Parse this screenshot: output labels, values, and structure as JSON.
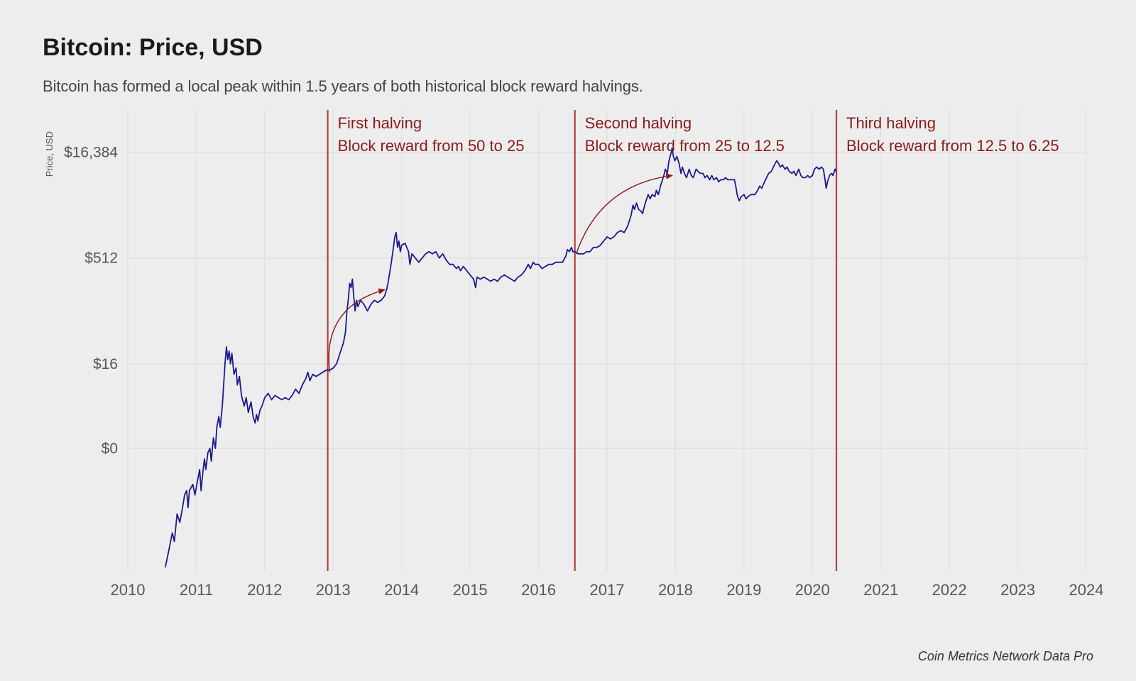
{
  "title": "Bitcoin: Price, USD",
  "subtitle": "Bitcoin has formed a local peak within 1.5 years of both historical block reward halvings.",
  "attribution": "Coin Metrics Network Data Pro",
  "chart": {
    "type": "line",
    "background_color": "#ededed",
    "grid_color": "#dcdcdc",
    "grid_stroke_width": 1,
    "line_color": "#1a1a8f",
    "line_stroke_width": 1.8,
    "halving_line_color": "#b04040",
    "halving_line_width": 2.2,
    "annotation_text_color": "#8b1a1a",
    "annotation_fontsize": 22,
    "arrow_color": "#8b1a1a",
    "arrow_stroke_width": 1.4,
    "ylabel": "Price, USD",
    "ylabel_fontsize": 13,
    "ylabel_color": "#555",
    "tick_label_color": "#555",
    "tick_fontsize_x": 22,
    "tick_fontsize_y": 21,
    "x_axis": {
      "min": 2010,
      "max": 2024,
      "ticks": [
        2010,
        2011,
        2012,
        2013,
        2014,
        2015,
        2016,
        2017,
        2018,
        2019,
        2020,
        2021,
        2022,
        2023,
        2024
      ]
    },
    "y_axis": {
      "scale": "log-like",
      "ticks": [
        {
          "label": "$0",
          "log_value": 0
        },
        {
          "label": "$16",
          "log_value": 4
        },
        {
          "label": "$512",
          "log_value": 9
        },
        {
          "label": "$16,384",
          "log_value": 14
        }
      ],
      "log_min": -5.8,
      "log_max": 16
    },
    "halvings": [
      {
        "x": 2012.92,
        "title": "First halving",
        "desc": "Block reward from 50 to 25"
      },
      {
        "x": 2016.53,
        "title": "Second halving",
        "desc": "Block reward from 25 to 12.5"
      },
      {
        "x": 2020.35,
        "title": "Third halving",
        "desc": "Block reward from 12.5 to 6.25"
      }
    ],
    "arrows": [
      {
        "start_x": 2012.95,
        "start_y_log": 3.6,
        "end_x": 2013.75,
        "end_y_log": 7.5,
        "curve": 0.5
      },
      {
        "start_x": 2016.55,
        "start_y_log": 9.2,
        "end_x": 2017.95,
        "end_y_log": 12.9,
        "curve": 0.45
      }
    ],
    "series": [
      [
        2010.55,
        -5.6
      ],
      [
        2010.6,
        -4.8
      ],
      [
        2010.65,
        -4.0
      ],
      [
        2010.68,
        -4.4
      ],
      [
        2010.72,
        -3.1
      ],
      [
        2010.76,
        -3.5
      ],
      [
        2010.8,
        -2.8
      ],
      [
        2010.83,
        -2.2
      ],
      [
        2010.86,
        -2.0
      ],
      [
        2010.88,
        -2.8
      ],
      [
        2010.9,
        -2.0
      ],
      [
        2010.95,
        -1.7
      ],
      [
        2010.98,
        -2.2
      ],
      [
        2011.02,
        -1.5
      ],
      [
        2011.05,
        -1.0
      ],
      [
        2011.07,
        -2.0
      ],
      [
        2011.1,
        -1.0
      ],
      [
        2011.12,
        -0.5
      ],
      [
        2011.14,
        -1.0
      ],
      [
        2011.17,
        -0.2
      ],
      [
        2011.2,
        0.0
      ],
      [
        2011.22,
        -0.6
      ],
      [
        2011.25,
        0.5
      ],
      [
        2011.28,
        0.0
      ],
      [
        2011.3,
        1.0
      ],
      [
        2011.33,
        1.5
      ],
      [
        2011.35,
        1.0
      ],
      [
        2011.38,
        2.0
      ],
      [
        2011.4,
        3.0
      ],
      [
        2011.42,
        4.0
      ],
      [
        2011.44,
        4.8
      ],
      [
        2011.46,
        4.2
      ],
      [
        2011.48,
        4.6
      ],
      [
        2011.5,
        4.0
      ],
      [
        2011.52,
        4.5
      ],
      [
        2011.55,
        3.5
      ],
      [
        2011.58,
        3.8
      ],
      [
        2011.6,
        3.0
      ],
      [
        2011.63,
        3.4
      ],
      [
        2011.66,
        2.5
      ],
      [
        2011.7,
        2.0
      ],
      [
        2011.73,
        2.4
      ],
      [
        2011.76,
        1.7
      ],
      [
        2011.8,
        2.2
      ],
      [
        2011.83,
        1.5
      ],
      [
        2011.86,
        1.2
      ],
      [
        2011.88,
        1.6
      ],
      [
        2011.9,
        1.3
      ],
      [
        2011.93,
        1.8
      ],
      [
        2011.96,
        2.0
      ],
      [
        2012.0,
        2.4
      ],
      [
        2012.05,
        2.6
      ],
      [
        2012.1,
        2.3
      ],
      [
        2012.15,
        2.5
      ],
      [
        2012.2,
        2.4
      ],
      [
        2012.25,
        2.3
      ],
      [
        2012.3,
        2.4
      ],
      [
        2012.35,
        2.3
      ],
      [
        2012.4,
        2.5
      ],
      [
        2012.45,
        2.8
      ],
      [
        2012.5,
        2.6
      ],
      [
        2012.55,
        3.0
      ],
      [
        2012.6,
        3.3
      ],
      [
        2012.63,
        3.6
      ],
      [
        2012.66,
        3.2
      ],
      [
        2012.7,
        3.5
      ],
      [
        2012.75,
        3.4
      ],
      [
        2012.8,
        3.5
      ],
      [
        2012.85,
        3.6
      ],
      [
        2012.9,
        3.7
      ],
      [
        2012.95,
        3.7
      ],
      [
        2013.0,
        3.8
      ],
      [
        2013.05,
        4.0
      ],
      [
        2013.1,
        4.5
      ],
      [
        2013.15,
        5.0
      ],
      [
        2013.18,
        5.5
      ],
      [
        2013.2,
        6.5
      ],
      [
        2013.22,
        7.0
      ],
      [
        2013.24,
        7.8
      ],
      [
        2013.26,
        7.6
      ],
      [
        2013.28,
        8.0
      ],
      [
        2013.3,
        7.2
      ],
      [
        2013.32,
        6.5
      ],
      [
        2013.34,
        7.0
      ],
      [
        2013.36,
        6.7
      ],
      [
        2013.4,
        7.0
      ],
      [
        2013.45,
        6.8
      ],
      [
        2013.5,
        6.5
      ],
      [
        2013.55,
        6.8
      ],
      [
        2013.6,
        7.0
      ],
      [
        2013.65,
        6.9
      ],
      [
        2013.7,
        7.0
      ],
      [
        2013.75,
        7.2
      ],
      [
        2013.78,
        7.5
      ],
      [
        2013.8,
        7.8
      ],
      [
        2013.82,
        8.2
      ],
      [
        2013.85,
        8.8
      ],
      [
        2013.88,
        9.5
      ],
      [
        2013.9,
        10.0
      ],
      [
        2013.92,
        10.2
      ],
      [
        2013.94,
        9.5
      ],
      [
        2013.96,
        9.8
      ],
      [
        2013.98,
        9.3
      ],
      [
        2014.0,
        9.6
      ],
      [
        2014.05,
        9.7
      ],
      [
        2014.1,
        9.3
      ],
      [
        2014.12,
        8.7
      ],
      [
        2014.15,
        9.2
      ],
      [
        2014.2,
        9.0
      ],
      [
        2014.25,
        8.8
      ],
      [
        2014.3,
        9.0
      ],
      [
        2014.35,
        9.2
      ],
      [
        2014.4,
        9.3
      ],
      [
        2014.45,
        9.2
      ],
      [
        2014.5,
        9.3
      ],
      [
        2014.55,
        9.0
      ],
      [
        2014.6,
        9.2
      ],
      [
        2014.65,
        8.9
      ],
      [
        2014.7,
        8.7
      ],
      [
        2014.75,
        8.7
      ],
      [
        2014.8,
        8.5
      ],
      [
        2014.83,
        8.6
      ],
      [
        2014.86,
        8.4
      ],
      [
        2014.9,
        8.6
      ],
      [
        2014.95,
        8.4
      ],
      [
        2015.0,
        8.2
      ],
      [
        2015.05,
        8.0
      ],
      [
        2015.08,
        7.6
      ],
      [
        2015.1,
        8.1
      ],
      [
        2015.15,
        8.0
      ],
      [
        2015.2,
        8.1
      ],
      [
        2015.25,
        8.0
      ],
      [
        2015.3,
        7.9
      ],
      [
        2015.35,
        8.0
      ],
      [
        2015.4,
        7.9
      ],
      [
        2015.45,
        8.1
      ],
      [
        2015.5,
        8.2
      ],
      [
        2015.55,
        8.1
      ],
      [
        2015.6,
        8.0
      ],
      [
        2015.65,
        7.9
      ],
      [
        2015.7,
        8.1
      ],
      [
        2015.75,
        8.2
      ],
      [
        2015.8,
        8.4
      ],
      [
        2015.85,
        8.7
      ],
      [
        2015.88,
        8.5
      ],
      [
        2015.92,
        8.8
      ],
      [
        2015.95,
        8.7
      ],
      [
        2016.0,
        8.7
      ],
      [
        2016.05,
        8.5
      ],
      [
        2016.1,
        8.6
      ],
      [
        2016.15,
        8.7
      ],
      [
        2016.2,
        8.7
      ],
      [
        2016.25,
        8.8
      ],
      [
        2016.3,
        8.8
      ],
      [
        2016.35,
        8.8
      ],
      [
        2016.4,
        9.1
      ],
      [
        2016.42,
        9.4
      ],
      [
        2016.45,
        9.3
      ],
      [
        2016.48,
        9.5
      ],
      [
        2016.5,
        9.3
      ],
      [
        2016.53,
        9.3
      ],
      [
        2016.58,
        9.2
      ],
      [
        2016.62,
        9.2
      ],
      [
        2016.66,
        9.2
      ],
      [
        2016.7,
        9.3
      ],
      [
        2016.75,
        9.3
      ],
      [
        2016.8,
        9.5
      ],
      [
        2016.85,
        9.5
      ],
      [
        2016.9,
        9.6
      ],
      [
        2016.95,
        9.8
      ],
      [
        2017.0,
        10.0
      ],
      [
        2017.05,
        9.9
      ],
      [
        2017.1,
        10.0
      ],
      [
        2017.15,
        10.2
      ],
      [
        2017.2,
        10.3
      ],
      [
        2017.25,
        10.2
      ],
      [
        2017.3,
        10.5
      ],
      [
        2017.35,
        11.0
      ],
      [
        2017.38,
        11.5
      ],
      [
        2017.4,
        11.3
      ],
      [
        2017.43,
        11.6
      ],
      [
        2017.46,
        11.3
      ],
      [
        2017.5,
        11.2
      ],
      [
        2017.52,
        11.1
      ],
      [
        2017.55,
        11.5
      ],
      [
        2017.58,
        11.8
      ],
      [
        2017.6,
        12.0
      ],
      [
        2017.63,
        11.8
      ],
      [
        2017.66,
        12.0
      ],
      [
        2017.7,
        11.9
      ],
      [
        2017.72,
        12.2
      ],
      [
        2017.75,
        12.0
      ],
      [
        2017.78,
        12.4
      ],
      [
        2017.8,
        12.6
      ],
      [
        2017.83,
        12.9
      ],
      [
        2017.85,
        13.2
      ],
      [
        2017.88,
        13.0
      ],
      [
        2017.9,
        13.5
      ],
      [
        2017.92,
        13.8
      ],
      [
        2017.94,
        14.0
      ],
      [
        2017.95,
        14.2
      ],
      [
        2017.97,
        13.8
      ],
      [
        2017.99,
        13.6
      ],
      [
        2018.02,
        13.8
      ],
      [
        2018.05,
        13.5
      ],
      [
        2018.08,
        13.0
      ],
      [
        2018.1,
        13.3
      ],
      [
        2018.13,
        13.0
      ],
      [
        2018.16,
        12.8
      ],
      [
        2018.2,
        13.2
      ],
      [
        2018.23,
        12.9
      ],
      [
        2018.26,
        12.8
      ],
      [
        2018.3,
        13.2
      ],
      [
        2018.33,
        13.1
      ],
      [
        2018.36,
        13.0
      ],
      [
        2018.4,
        13.0
      ],
      [
        2018.43,
        12.8
      ],
      [
        2018.46,
        12.9
      ],
      [
        2018.5,
        12.7
      ],
      [
        2018.53,
        12.9
      ],
      [
        2018.56,
        12.7
      ],
      [
        2018.6,
        12.8
      ],
      [
        2018.63,
        12.6
      ],
      [
        2018.66,
        12.7
      ],
      [
        2018.7,
        12.7
      ],
      [
        2018.73,
        12.8
      ],
      [
        2018.76,
        12.7
      ],
      [
        2018.8,
        12.7
      ],
      [
        2018.83,
        12.7
      ],
      [
        2018.86,
        12.7
      ],
      [
        2018.88,
        12.4
      ],
      [
        2018.9,
        12.0
      ],
      [
        2018.93,
        11.7
      ],
      [
        2018.96,
        11.9
      ],
      [
        2019.0,
        12.0
      ],
      [
        2019.03,
        11.8
      ],
      [
        2019.06,
        11.9
      ],
      [
        2019.1,
        12.0
      ],
      [
        2019.13,
        12.0
      ],
      [
        2019.16,
        12.0
      ],
      [
        2019.2,
        12.2
      ],
      [
        2019.23,
        12.4
      ],
      [
        2019.26,
        12.3
      ],
      [
        2019.3,
        12.6
      ],
      [
        2019.33,
        12.8
      ],
      [
        2019.36,
        13.0
      ],
      [
        2019.4,
        13.1
      ],
      [
        2019.43,
        13.3
      ],
      [
        2019.46,
        13.5
      ],
      [
        2019.48,
        13.6
      ],
      [
        2019.5,
        13.5
      ],
      [
        2019.53,
        13.3
      ],
      [
        2019.56,
        13.4
      ],
      [
        2019.6,
        13.2
      ],
      [
        2019.63,
        13.3
      ],
      [
        2019.66,
        13.1
      ],
      [
        2019.7,
        13.0
      ],
      [
        2019.73,
        13.1
      ],
      [
        2019.76,
        12.9
      ],
      [
        2019.8,
        13.2
      ],
      [
        2019.83,
        12.9
      ],
      [
        2019.86,
        12.8
      ],
      [
        2019.9,
        12.8
      ],
      [
        2019.93,
        12.9
      ],
      [
        2019.96,
        12.8
      ],
      [
        2020.0,
        12.9
      ],
      [
        2020.03,
        13.2
      ],
      [
        2020.06,
        13.3
      ],
      [
        2020.1,
        13.2
      ],
      [
        2020.13,
        13.3
      ],
      [
        2020.16,
        13.2
      ],
      [
        2020.18,
        12.8
      ],
      [
        2020.2,
        12.3
      ],
      [
        2020.22,
        12.6
      ],
      [
        2020.25,
        12.9
      ],
      [
        2020.28,
        13.0
      ],
      [
        2020.3,
        12.9
      ],
      [
        2020.33,
        13.2
      ],
      [
        2020.35,
        13.1
      ]
    ]
  }
}
